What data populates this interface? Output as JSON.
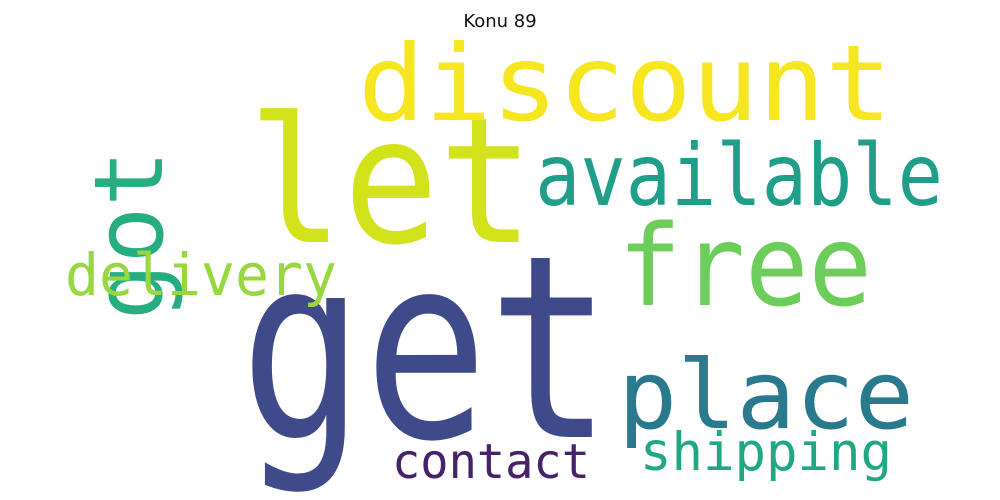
{
  "title": "Konu 89",
  "words": [
    {
      "text": "get",
      "color": "#3f4a8a"
    },
    {
      "text": "let",
      "color": "#d2e21b"
    },
    {
      "text": "discount",
      "color": "#f6e620"
    },
    {
      "text": "free",
      "color": "#6ccd5a"
    },
    {
      "text": "available",
      "color": "#1f9e89"
    },
    {
      "text": "place",
      "color": "#2a7a8e"
    },
    {
      "text": "got",
      "color": "#26ad81"
    },
    {
      "text": "delivery",
      "color": "#97d83e"
    },
    {
      "text": "shipping",
      "color": "#22a784"
    },
    {
      "text": "contact",
      "color": "#45226a"
    }
  ]
}
